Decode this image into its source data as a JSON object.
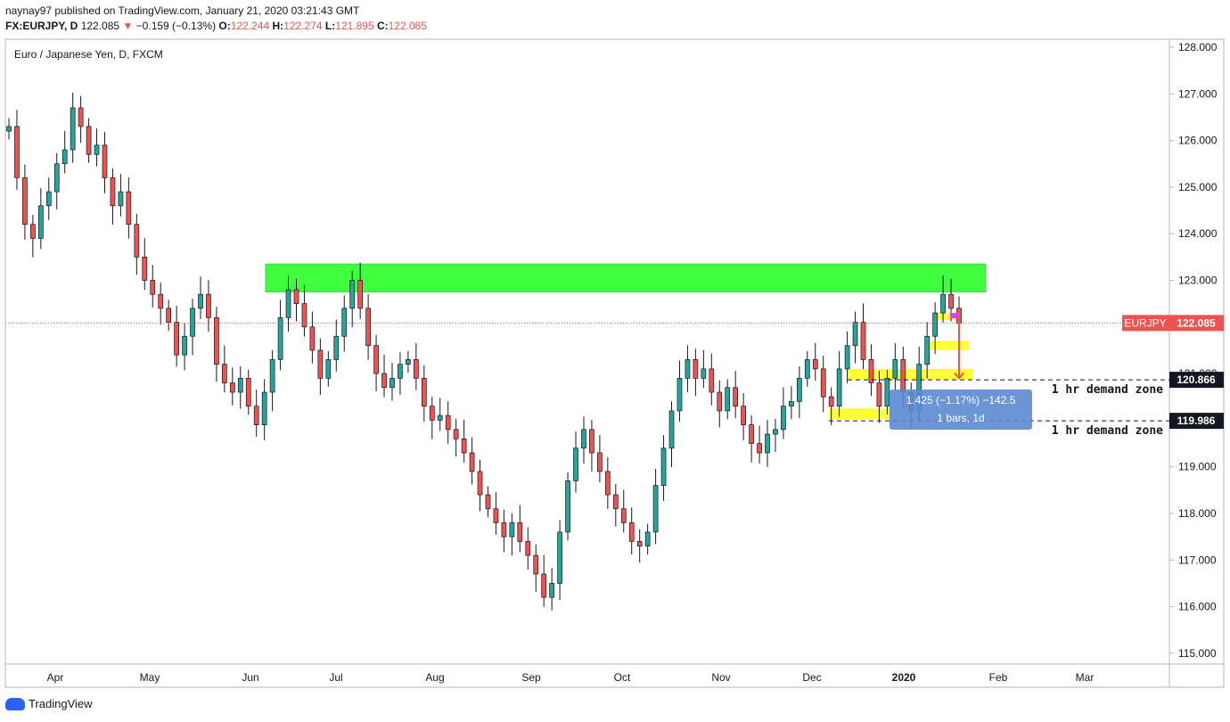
{
  "header": {
    "publisher": "naynay97 published on TradingView.com, January 21, 2020 03:21:43 GMT",
    "symbol_line_prefix": "FX:EURJPY, D",
    "last": "122.085",
    "change_arrow": "▼",
    "change": "−0.159 (−0.13%)",
    "o_label": "O:",
    "o_value": "122.244",
    "h_label": "H:",
    "h_value": "122.274",
    "l_label": "L:",
    "l_value": "121.895",
    "c_label": "C:",
    "c_value": "122.085"
  },
  "chart_title": "Euro / Japanese Yen, D, FXCM",
  "footer": {
    "brand": "TradingView"
  },
  "colors": {
    "up": "#26a69a",
    "down": "#ef5350",
    "candle": "#131722",
    "resistance": "#00ff00",
    "demand": "#ffff00",
    "measure": "#5b8ad0",
    "price_label": "#ef5350"
  },
  "chart_data": {
    "type": "candlestick",
    "symbol": "EURJPY",
    "timeframe": "D",
    "ylim": [
      114.7,
      128.3
    ],
    "y_ticks": [
      "128.000",
      "127.000",
      "126.000",
      "125.000",
      "124.000",
      "123.000",
      "122.000",
      "121.000",
      "120.000",
      "119.000",
      "118.000",
      "117.000",
      "116.000",
      "115.000"
    ],
    "x_labels": [
      "Apr",
      "May",
      "Jun",
      "Jul",
      "Aug",
      "Sep",
      "Oct",
      "Nov",
      "Dec",
      "2020",
      "Feb",
      "Mar"
    ],
    "last_price": {
      "label": "EURJPY",
      "value": "122.085"
    },
    "closes": [
      126.3,
      125.2,
      124.2,
      123.9,
      124.6,
      124.9,
      125.5,
      125.8,
      126.7,
      126.3,
      125.7,
      125.9,
      125.2,
      124.6,
      124.9,
      124.2,
      123.5,
      123.0,
      122.7,
      122.4,
      122.1,
      121.4,
      121.8,
      122.4,
      122.7,
      122.2,
      121.2,
      120.8,
      120.6,
      120.9,
      120.3,
      119.9,
      120.6,
      121.3,
      122.2,
      122.8,
      122.5,
      122.0,
      121.5,
      120.9,
      121.3,
      121.8,
      122.4,
      123.0,
      122.4,
      121.6,
      121.0,
      120.7,
      120.9,
      121.2,
      121.3,
      120.9,
      120.3,
      120.0,
      120.1,
      119.8,
      119.6,
      119.3,
      118.9,
      118.4,
      118.1,
      117.8,
      117.5,
      117.8,
      117.4,
      117.1,
      116.7,
      116.2,
      116.5,
      117.6,
      118.7,
      119.4,
      119.8,
      119.3,
      118.9,
      118.4,
      118.1,
      117.8,
      117.4,
      117.3,
      117.6,
      118.6,
      119.4,
      120.2,
      120.9,
      121.3,
      120.9,
      121.1,
      120.6,
      120.2,
      120.7,
      120.3,
      119.9,
      119.5,
      119.3,
      119.7,
      119.8,
      120.3,
      120.4,
      120.9,
      121.3,
      121.1,
      120.5,
      120.3,
      121.1,
      121.6,
      122.1,
      121.3,
      120.8,
      120.3,
      120.9,
      121.3,
      120.6,
      120.2,
      121.2,
      121.8,
      122.3,
      122.7,
      122.4,
      122.08
    ],
    "annotations": {
      "resistance_zone": {
        "top": 123.35,
        "bottom": 122.75
      },
      "demand_zone_1": {
        "label": "1 hr demand zone",
        "level": "120.866"
      },
      "demand_zone_2": {
        "label": "1 hr demand zone",
        "level": "119.986"
      },
      "measure": {
        "line1": "1.425 (−1.17%) −142.5",
        "line2": "1 bars, 1d"
      }
    }
  }
}
